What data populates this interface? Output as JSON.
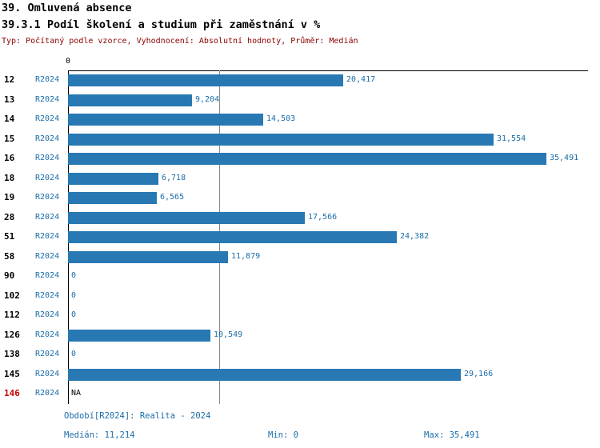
{
  "header": {
    "title1": "39. Omluvená absence",
    "title2": "39.3.1 Podíl školení a studium při zaměstnání v %",
    "subtitle": "Typ: Počítaný podle vzorce, Vyhodnocení: Absolutní hodnoty, Průměr: Medián"
  },
  "chart_data": {
    "type": "bar",
    "orientation": "horizontal",
    "title": "39.3.1 Podíl školení a studium při zaměstnání v %",
    "series_label": "R2024",
    "categories": [
      "12",
      "13",
      "14",
      "15",
      "16",
      "18",
      "19",
      "28",
      "51",
      "58",
      "90",
      "102",
      "112",
      "126",
      "138",
      "145",
      "146"
    ],
    "values": [
      20417,
      9204,
      14503,
      31554,
      35491,
      6718,
      6565,
      17566,
      24382,
      11879,
      0,
      0,
      0,
      10549,
      0,
      29166,
      null
    ],
    "value_labels": [
      "20,417",
      "9,204",
      "14,503",
      "31,554",
      "35,491",
      "6,718",
      "6,565",
      "17,566",
      "24,382",
      "11,879",
      "0",
      "0",
      "0",
      "10,549",
      "0",
      "29,166",
      "NA"
    ],
    "axis_top_tick": "0",
    "xlim": [
      0,
      38580
    ],
    "median_value": 11214,
    "highlight_category": "146",
    "legend_position": "none",
    "grid": "single-median-line",
    "colors": {
      "bar": "#2878b4",
      "value_label": "#1b6ca8",
      "series_label": "#1b6ca8",
      "category_label": "#000000",
      "highlight_category": "#cc0000",
      "subtitle": "#8b0000",
      "median_line": "#8a8a8a"
    }
  },
  "footer": {
    "period": "Období[R2024]: Realita - 2024",
    "median": "Medián: 11,214",
    "min": "Min: 0",
    "max": "Max: 35,491"
  }
}
